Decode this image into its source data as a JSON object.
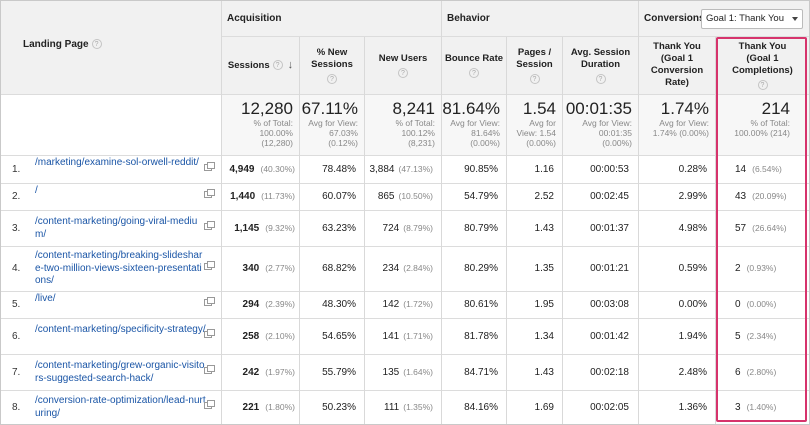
{
  "groups": {
    "acquisition": "Acquisition",
    "behavior": "Behavior",
    "conversions": "Conversions",
    "goal_select": "Goal 1: Thank You"
  },
  "columns": {
    "landing_page": "Landing Page",
    "sessions": "Sessions",
    "new_sessions": [
      "% New",
      "Sessions"
    ],
    "new_users": "New Users",
    "bounce_rate": "Bounce Rate",
    "pages_session": [
      "Pages /",
      "Session"
    ],
    "avg_duration": [
      "Avg. Session",
      "Duration"
    ],
    "conv_rate": [
      "Thank You",
      "(Goal 1",
      "Conversion",
      "Rate)"
    ],
    "completions": [
      "Thank You",
      "(Goal 1",
      "Completions)"
    ]
  },
  "totals": {
    "sessions": {
      "big": "12,280",
      "sub": [
        "% of Total:",
        "100.00%",
        "(12,280)"
      ]
    },
    "new_sessions": {
      "big": "67.11%",
      "sub": [
        "Avg for View:",
        "67.03%",
        "(0.12%)"
      ]
    },
    "new_users": {
      "big": "8,241",
      "sub": [
        "% of Total:",
        "100.12%",
        "(8,231)"
      ]
    },
    "bounce_rate": {
      "big": "81.64%",
      "sub": [
        "Avg for View:",
        "81.64%",
        "(0.00%)"
      ]
    },
    "pages_session": {
      "big": "1.54",
      "sub": [
        "Avg for",
        "View: 1.54",
        "(0.00%)"
      ]
    },
    "avg_duration": {
      "big": "00:01:35",
      "sub": [
        "Avg for View:",
        "00:01:35",
        "(0.00%)"
      ]
    },
    "conv_rate": {
      "big": "1.74%",
      "sub": [
        "Avg for View:",
        "1.74% (0.00%)"
      ]
    },
    "completions": {
      "big": "214",
      "sub": [
        "% of Total:",
        "100.00% (214)"
      ]
    }
  },
  "rows": [
    {
      "n": "1.",
      "page": "/marketing/examine-sol-orwell-reddit/",
      "sessions": "4,949",
      "sessions_pct": "(40.30%)",
      "new_sessions": "78.48%",
      "new_users": "3,884",
      "new_users_pct": "(47.13%)",
      "bounce": "90.85%",
      "pages": "1.16",
      "duration": "00:00:53",
      "conv_rate": "0.28%",
      "completions": "14",
      "completions_pct": "(6.54%)"
    },
    {
      "n": "2.",
      "page": "/",
      "sessions": "1,440",
      "sessions_pct": "(11.73%)",
      "new_sessions": "60.07%",
      "new_users": "865",
      "new_users_pct": "(10.50%)",
      "bounce": "54.79%",
      "pages": "2.52",
      "duration": "00:02:45",
      "conv_rate": "2.99%",
      "completions": "43",
      "completions_pct": "(20.09%)"
    },
    {
      "n": "3.",
      "page": "/content-marketing/going-viral-medium/",
      "sessions": "1,145",
      "sessions_pct": "(9.32%)",
      "new_sessions": "63.23%",
      "new_users": "724",
      "new_users_pct": "(8.79%)",
      "bounce": "80.79%",
      "pages": "1.43",
      "duration": "00:01:37",
      "conv_rate": "4.98%",
      "completions": "57",
      "completions_pct": "(26.64%)"
    },
    {
      "n": "4.",
      "page": "/content-marketing/breaking-slideshare-two-million-views-sixteen-presentations/",
      "sessions": "340",
      "sessions_pct": "(2.77%)",
      "new_sessions": "68.82%",
      "new_users": "234",
      "new_users_pct": "(2.84%)",
      "bounce": "80.29%",
      "pages": "1.35",
      "duration": "00:01:21",
      "conv_rate": "0.59%",
      "completions": "2",
      "completions_pct": "(0.93%)"
    },
    {
      "n": "5.",
      "page": "/live/",
      "sessions": "294",
      "sessions_pct": "(2.39%)",
      "new_sessions": "48.30%",
      "new_users": "142",
      "new_users_pct": "(1.72%)",
      "bounce": "80.61%",
      "pages": "1.95",
      "duration": "00:03:08",
      "conv_rate": "0.00%",
      "completions": "0",
      "completions_pct": "(0.00%)"
    },
    {
      "n": "6.",
      "page": "/content-marketing/specificity-strategy/",
      "sessions": "258",
      "sessions_pct": "(2.10%)",
      "new_sessions": "54.65%",
      "new_users": "141",
      "new_users_pct": "(1.71%)",
      "bounce": "81.78%",
      "pages": "1.34",
      "duration": "00:01:42",
      "conv_rate": "1.94%",
      "completions": "5",
      "completions_pct": "(2.34%)"
    },
    {
      "n": "7.",
      "page": "/content-marketing/grew-organic-visitors-suggested-search-hack/",
      "sessions": "242",
      "sessions_pct": "(1.97%)",
      "new_sessions": "55.79%",
      "new_users": "135",
      "new_users_pct": "(1.64%)",
      "bounce": "84.71%",
      "pages": "1.43",
      "duration": "00:02:18",
      "conv_rate": "2.48%",
      "completions": "6",
      "completions_pct": "(2.80%)"
    },
    {
      "n": "8.",
      "page": "/conversion-rate-optimization/lead-nurturing/",
      "sessions": "221",
      "sessions_pct": "(1.80%)",
      "new_sessions": "50.23%",
      "new_users": "111",
      "new_users_pct": "(1.35%)",
      "bounce": "84.16%",
      "pages": "1.69",
      "duration": "00:02:05",
      "conv_rate": "1.36%",
      "completions": "3",
      "completions_pct": "(1.40%)"
    }
  ],
  "colors": {
    "link": "#1a55a6",
    "highlight": "#d6336c"
  }
}
